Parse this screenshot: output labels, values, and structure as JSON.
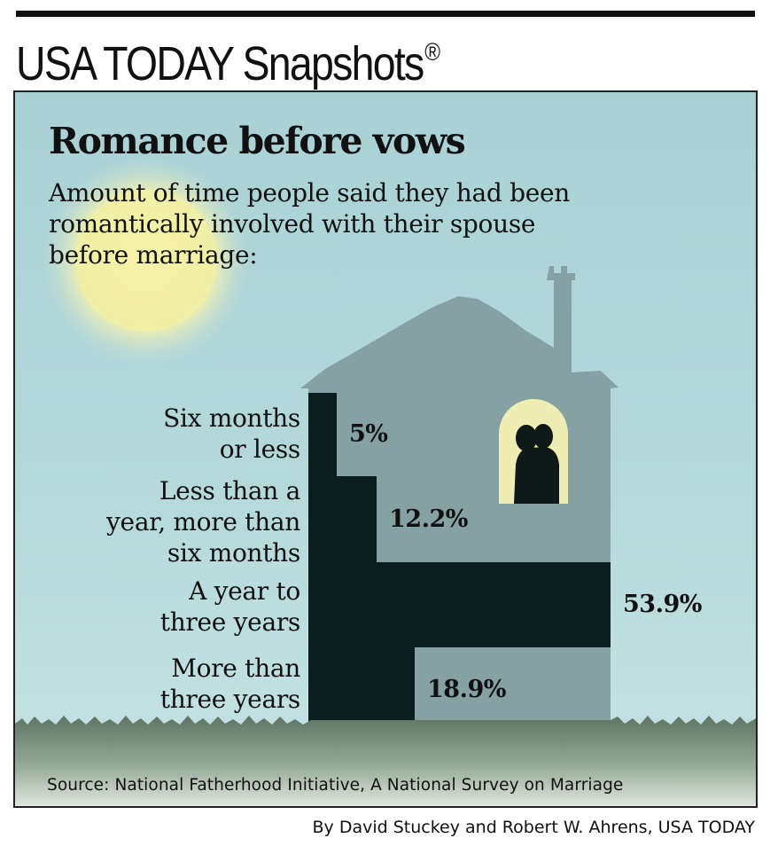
{
  "header": {
    "brand": "USA TODAY Snapshots",
    "registered_mark": "®"
  },
  "chart": {
    "title": "Romance before vows",
    "subtitle": "Amount of time people said they had been romantically involved with their spouse before marriage:",
    "source": "Source: National Fatherhood Initiative, A National Survey on Marriage"
  },
  "credit": "By David Stuckey and Robert W. Ahrens, USA TODAY",
  "colors": {
    "sky": "#a9d1d4",
    "house": "#85a1a3",
    "bars": "#0a1f1d",
    "window_glow": "#eeeeb4",
    "sun": "#f2f0a3",
    "grass": "#5d7565"
  },
  "chart_data": {
    "type": "bar",
    "orientation": "horizontal",
    "title": "Romance before vows",
    "subtitle": "Amount of time people said they had been romantically involved with their spouse before marriage:",
    "categories": [
      "Six months\nor less",
      "Less than a\nyear, more than\nsix months",
      "A year to\nthree years",
      "More than\nthree years"
    ],
    "values": [
      5,
      12.2,
      53.9,
      18.9
    ],
    "value_labels": [
      "5%",
      "12.2%",
      "53.9%",
      "18.9%"
    ],
    "unit": "%",
    "xlim": [
      0,
      53.9
    ],
    "grid": false,
    "legend": "none"
  }
}
